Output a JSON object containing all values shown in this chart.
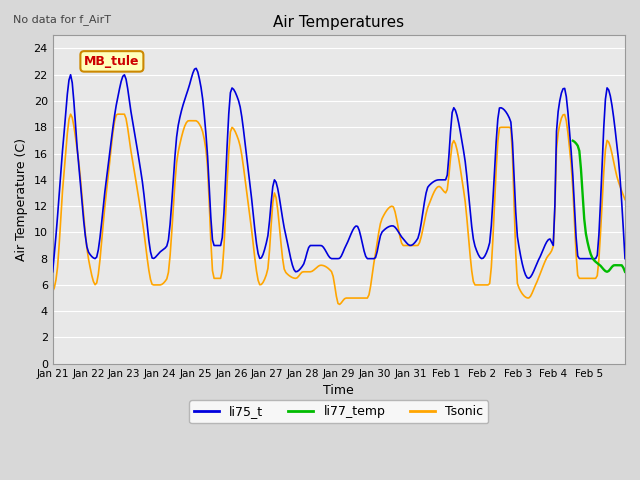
{
  "title": "Air Temperatures",
  "subtitle": "No data for f_AirT",
  "xlabel": "Time",
  "ylabel": "Air Temperature (C)",
  "ylim": [
    0,
    25
  ],
  "yticks": [
    0,
    2,
    4,
    6,
    8,
    10,
    12,
    14,
    16,
    18,
    20,
    22,
    24
  ],
  "annotation_text": "MB_tule",
  "bg_color": "#d8d8d8",
  "plot_bg_color": "#e8e8e8",
  "grid_color": "#ffffff",
  "legend_labels": [
    "li75_t",
    "li77_temp",
    "Tsonic"
  ],
  "legend_colors": [
    "#0000dd",
    "#00bb00",
    "#ffa500"
  ],
  "line_width": 1.2,
  "xticklabels": [
    "Jan 21",
    "Jan 22",
    "Jan 23",
    "Jan 24",
    "Jan 25",
    "Jan 26",
    "Jan 27",
    "Jan 28",
    "Jan 29",
    "Jan 30",
    "Jan 31",
    "Feb 1",
    "Feb 2",
    "Feb 3",
    "Feb 4",
    "Feb 5"
  ],
  "figsize": [
    6.4,
    4.8
  ],
  "dpi": 100
}
